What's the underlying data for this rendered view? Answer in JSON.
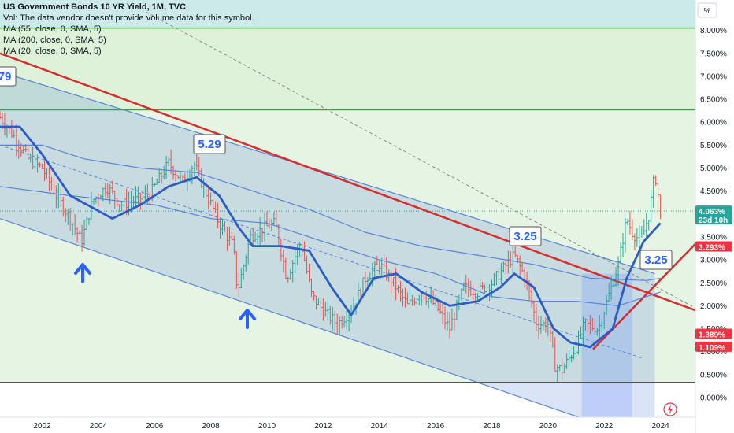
{
  "legend": {
    "title": "US Government Bonds 10 YR Yield, 1M, TVC",
    "vol_note": "Vol: The data vendor doesn't provide volume data for this symbol.",
    "ma_lines": [
      "MA (55, close, 0, SMA, 5)",
      "MA (200, close, 0, SMA, 5)",
      "MA (20, close, 0, SMA, 5)"
    ]
  },
  "axis": {
    "unit": "%",
    "y_ticks": [
      "8.000%",
      "7.500%",
      "7.000%",
      "6.500%",
      "6.000%",
      "5.500%",
      "5.000%",
      "4.500%",
      "3.500%",
      "3.000%",
      "2.500%",
      "2.000%",
      "1.500%",
      "1.000%",
      "0.500%",
      "0.000%"
    ],
    "x_ticks": [
      "2002",
      "2004",
      "2006",
      "2008",
      "2010",
      "2012",
      "2014",
      "2016",
      "2018",
      "2020",
      "2022",
      "2024"
    ]
  },
  "annotations": {
    "left_cut_label": "79",
    "peak_2007": "5.29",
    "peak_2018": "3.25",
    "level_2023": "3.25"
  },
  "price_tags": {
    "last_price": "4.063%",
    "countdown": "23d 10h",
    "trendline_level": "3.293%",
    "level_a": "1.389%",
    "level_b": "1.109%"
  },
  "colors": {
    "ma20": "#2c5cc5",
    "channel": "#5b86d6",
    "trend": "#d32f2f",
    "horizontal": "#43a047",
    "up_bar": "#26a69a",
    "down_bar": "#ef5350"
  },
  "chart_data": {
    "type": "ohlc",
    "y_axis": {
      "unit": "%",
      "range": [
        0,
        8.5
      ]
    },
    "x_axis": {
      "range": [
        2000.5,
        2024.6
      ]
    },
    "horizontal_levels": [
      8.05,
      6.27,
      0.33
    ],
    "key_levels": [
      {
        "label": "5.29",
        "x": 2007.4,
        "y": 5.29
      },
      {
        "label": "3.25",
        "x": 2018.8,
        "y": 3.25
      },
      {
        "label": "3.25",
        "x": 2023.0,
        "y": 3.25
      }
    ],
    "last": {
      "value": 4.063
    },
    "series": [
      {
        "name": "close",
        "points": [
          [
            2000.5,
            6.1
          ],
          [
            2001.0,
            5.7
          ],
          [
            2001.5,
            5.2
          ],
          [
            2002.0,
            5.0
          ],
          [
            2002.5,
            4.4
          ],
          [
            2003.0,
            3.9
          ],
          [
            2003.4,
            3.4
          ],
          [
            2003.8,
            4.3
          ],
          [
            2004.3,
            4.6
          ],
          [
            2004.8,
            4.2
          ],
          [
            2005.3,
            4.3
          ],
          [
            2005.8,
            4.4
          ],
          [
            2006.5,
            5.1
          ],
          [
            2007.0,
            4.7
          ],
          [
            2007.4,
            5.1
          ],
          [
            2007.8,
            4.5
          ],
          [
            2008.3,
            3.8
          ],
          [
            2008.8,
            3.3
          ],
          [
            2008.95,
            2.3
          ],
          [
            2009.4,
            3.5
          ],
          [
            2009.9,
            3.7
          ],
          [
            2010.3,
            3.8
          ],
          [
            2010.7,
            2.6
          ],
          [
            2011.2,
            3.4
          ],
          [
            2011.6,
            2.2
          ],
          [
            2012.0,
            1.9
          ],
          [
            2012.5,
            1.6
          ],
          [
            2013.0,
            1.9
          ],
          [
            2013.5,
            2.6
          ],
          [
            2014.0,
            2.9
          ],
          [
            2014.5,
            2.5
          ],
          [
            2015.0,
            2.0
          ],
          [
            2015.5,
            2.3
          ],
          [
            2016.0,
            2.0
          ],
          [
            2016.5,
            1.5
          ],
          [
            2017.0,
            2.4
          ],
          [
            2017.5,
            2.3
          ],
          [
            2018.0,
            2.5
          ],
          [
            2018.8,
            3.1
          ],
          [
            2019.2,
            2.6
          ],
          [
            2019.6,
            1.6
          ],
          [
            2020.0,
            1.6
          ],
          [
            2020.25,
            0.7
          ],
          [
            2020.5,
            0.6
          ],
          [
            2021.0,
            1.1
          ],
          [
            2021.3,
            1.6
          ],
          [
            2021.8,
            1.5
          ],
          [
            2022.2,
            2.3
          ],
          [
            2022.5,
            2.9
          ],
          [
            2022.8,
            3.9
          ],
          [
            2023.0,
            3.6
          ],
          [
            2023.3,
            3.4
          ],
          [
            2023.6,
            4.0
          ],
          [
            2023.8,
            4.9
          ],
          [
            2024.0,
            4.06
          ]
        ]
      },
      {
        "name": "MA 20",
        "points": [
          [
            2000.5,
            5.9
          ],
          [
            2001.2,
            5.9
          ],
          [
            2002.0,
            5.3
          ],
          [
            2003.0,
            4.4
          ],
          [
            2003.6,
            4.2
          ],
          [
            2004.5,
            3.9
          ],
          [
            2005.5,
            4.2
          ],
          [
            2006.5,
            4.6
          ],
          [
            2007.5,
            4.8
          ],
          [
            2008.3,
            4.4
          ],
          [
            2009.0,
            3.7
          ],
          [
            2009.5,
            3.3
          ],
          [
            2010.5,
            3.3
          ],
          [
            2011.5,
            3.2
          ],
          [
            2012.3,
            2.4
          ],
          [
            2013.0,
            1.8
          ],
          [
            2013.8,
            2.6
          ],
          [
            2014.6,
            2.7
          ],
          [
            2015.5,
            2.3
          ],
          [
            2016.5,
            2.0
          ],
          [
            2017.5,
            2.1
          ],
          [
            2018.3,
            2.4
          ],
          [
            2018.8,
            2.7
          ],
          [
            2019.5,
            2.4
          ],
          [
            2020.2,
            1.5
          ],
          [
            2020.8,
            1.2
          ],
          [
            2021.5,
            1.1
          ],
          [
            2022.3,
            1.5
          ],
          [
            2022.8,
            2.6
          ],
          [
            2023.4,
            3.4
          ],
          [
            2024.0,
            3.8
          ]
        ]
      },
      {
        "name": "MA 55",
        "points": [
          [
            2000.5,
            5.5
          ],
          [
            2002.0,
            5.5
          ],
          [
            2003.5,
            5.2
          ],
          [
            2005.5,
            5.0
          ],
          [
            2007.5,
            4.9
          ],
          [
            2009.5,
            4.5
          ],
          [
            2011.5,
            4.1
          ],
          [
            2013.5,
            3.6
          ],
          [
            2015.5,
            3.3
          ],
          [
            2017.5,
            3.1
          ],
          [
            2019.5,
            2.9
          ],
          [
            2021.5,
            2.6
          ],
          [
            2023.5,
            2.55
          ],
          [
            2024.0,
            2.6
          ]
        ]
      },
      {
        "name": "MA 200",
        "points": [
          [
            2000.5,
            4.6
          ],
          [
            2003.0,
            4.4
          ],
          [
            2006.0,
            4.2
          ],
          [
            2008.0,
            3.9
          ],
          [
            2010.0,
            3.8
          ],
          [
            2012.0,
            3.4
          ],
          [
            2014.0,
            3.0
          ],
          [
            2016.0,
            2.7
          ],
          [
            2018.0,
            2.2
          ],
          [
            2019.5,
            2.1
          ],
          [
            2021.0,
            2.1
          ],
          [
            2022.5,
            2.0
          ],
          [
            2024.0,
            2.3
          ]
        ]
      }
    ]
  }
}
